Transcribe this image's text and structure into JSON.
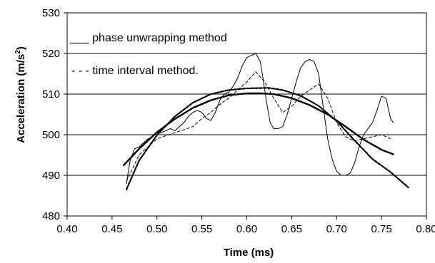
{
  "chart_data": {
    "type": "line",
    "xlabel": "Time (ms)",
    "ylabel": "Acceleration (m/s",
    "ylabel_superscript": "2",
    "ylabel_suffix": ")",
    "xlim": [
      0.4,
      0.8
    ],
    "ylim": [
      480,
      530
    ],
    "xticks": [
      "0.40",
      "0.45",
      "0.50",
      "0.55",
      "0.60",
      "0.65",
      "0.70",
      "0.75",
      "0.80"
    ],
    "yticks": [
      "480",
      "490",
      "500",
      "510",
      "520",
      "530"
    ],
    "xtick_values": [
      0.4,
      0.45,
      0.5,
      0.55,
      0.6,
      0.65,
      0.7,
      0.75,
      0.8
    ],
    "ytick_values": [
      480,
      490,
      500,
      510,
      520,
      530
    ],
    "grid": "horizontal",
    "legend_placement": "top-left",
    "legend": [
      {
        "prefix": "___ ",
        "label": "phase unwrapping method"
      },
      {
        "prefix": "- - - ",
        "label": "time interval method."
      }
    ],
    "series": [
      {
        "style": "thin-solid",
        "x": [
          0.466,
          0.47,
          0.475,
          0.48,
          0.485,
          0.49,
          0.495,
          0.5,
          0.505,
          0.51,
          0.515,
          0.52,
          0.525,
          0.53,
          0.535,
          0.54,
          0.545,
          0.55,
          0.555,
          0.56,
          0.565,
          0.57,
          0.575,
          0.58,
          0.585,
          0.59,
          0.595,
          0.6,
          0.605,
          0.61,
          0.615,
          0.618,
          0.622,
          0.626,
          0.63,
          0.635,
          0.64,
          0.645,
          0.65,
          0.655,
          0.66,
          0.665,
          0.67,
          0.675,
          0.68,
          0.685,
          0.69,
          0.695,
          0.7,
          0.705,
          0.71,
          0.715,
          0.72,
          0.725,
          0.73,
          0.735,
          0.74,
          0.745,
          0.75,
          0.755,
          0.758,
          0.76,
          0.763
        ],
        "y": [
          488.0,
          493.5,
          496.5,
          497.0,
          498.0,
          499.0,
          499.5,
          500.5,
          500.5,
          501.0,
          501.5,
          501.0,
          502.0,
          503.0,
          504.5,
          505.5,
          506.0,
          505.5,
          504.0,
          503.5,
          505.5,
          508.5,
          510.0,
          510.5,
          512.0,
          514.0,
          517.0,
          519.0,
          519.5,
          520.0,
          518.0,
          514.0,
          508.0,
          503.0,
          501.5,
          501.5,
          502.0,
          505.0,
          509.0,
          513.0,
          516.5,
          518.0,
          518.5,
          518.0,
          515.0,
          507.0,
          499.0,
          494.0,
          491.0,
          490.0,
          490.0,
          490.5,
          493.0,
          497.0,
          500.0,
          501.5,
          503.0,
          506.0,
          509.5,
          509.0,
          506.0,
          504.0,
          503.0
        ]
      },
      {
        "style": "thin-dashed",
        "x": [
          0.466,
          0.48,
          0.5,
          0.52,
          0.54,
          0.55,
          0.56,
          0.57,
          0.58,
          0.59,
          0.6,
          0.61,
          0.62,
          0.63,
          0.64,
          0.65,
          0.66,
          0.67,
          0.68,
          0.69,
          0.7,
          0.71,
          0.72,
          0.73,
          0.74,
          0.75,
          0.76
        ],
        "y": [
          488.5,
          495.0,
          499.0,
          500.5,
          502.0,
          504.0,
          505.5,
          507.5,
          509.0,
          511.0,
          513.0,
          515.5,
          513.0,
          509.0,
          505.5,
          507.0,
          509.5,
          511.0,
          512.5,
          509.0,
          503.0,
          499.5,
          498.5,
          499.0,
          499.5,
          500.0,
          499.0
        ]
      },
      {
        "style": "bold-dashed",
        "x": [
          0.466,
          0.48,
          0.5,
          0.52,
          0.54,
          0.56,
          0.58,
          0.6,
          0.62,
          0.625,
          0.64,
          0.66,
          0.68,
          0.7,
          0.72,
          0.74,
          0.76,
          0.78
        ],
        "y": [
          486.5,
          493.6,
          499.9,
          504.5,
          507.9,
          510.0,
          511.0,
          511.4,
          511.5,
          511.5,
          511.0,
          509.6,
          507.1,
          503.4,
          498.6,
          494.0,
          490.8,
          487.0
        ]
      },
      {
        "style": "bold-solid",
        "x": [
          0.463,
          0.48,
          0.5,
          0.52,
          0.54,
          0.56,
          0.58,
          0.6,
          0.615,
          0.63,
          0.65,
          0.67,
          0.69,
          0.71,
          0.73,
          0.75,
          0.763
        ],
        "y": [
          492.5,
          496.5,
          500.6,
          503.9,
          506.6,
          508.5,
          509.7,
          510.2,
          510.2,
          510.0,
          509.0,
          507.3,
          505.0,
          502.0,
          498.8,
          496.3,
          495.2
        ]
      }
    ]
  }
}
